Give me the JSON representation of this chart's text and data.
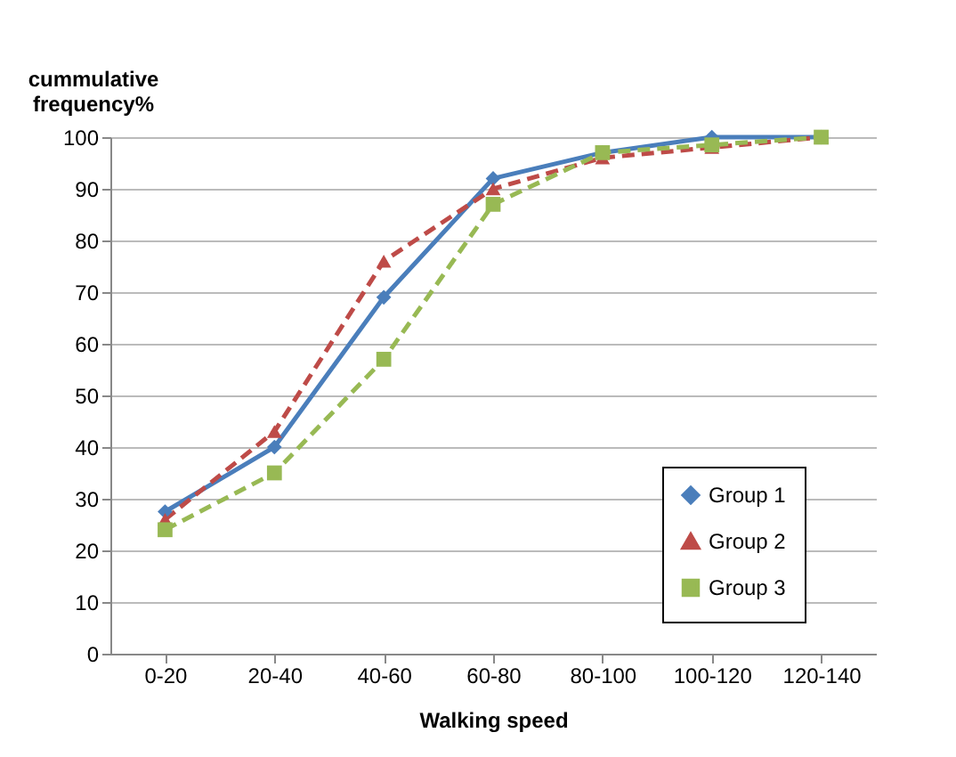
{
  "chart_data": {
    "type": "line",
    "xlabel": "Walking speed",
    "ylabel": "cummulative frequency%",
    "categories": [
      "0-20",
      "20-40",
      "40-60",
      "60-80",
      "80-100",
      "100-120",
      "120-140"
    ],
    "series": [
      {
        "name": "Group 1",
        "color": "#4a7ebb",
        "marker": "diamond",
        "line_style": "solid",
        "values": [
          27.5,
          40,
          69,
          92,
          97,
          100,
          100
        ]
      },
      {
        "name": "Group 2",
        "color": "#be4b48",
        "marker": "triangle",
        "line_style": "dashed",
        "values": [
          26,
          43,
          76,
          90,
          96,
          98,
          100
        ]
      },
      {
        "name": "Group 3",
        "color": "#98b954",
        "marker": "square",
        "line_style": "dashed",
        "values": [
          24,
          35,
          57,
          87,
          97,
          98.5,
          100
        ]
      }
    ],
    "ylim": [
      0,
      100
    ],
    "yticks": [
      0,
      10,
      20,
      30,
      40,
      50,
      60,
      70,
      80,
      90,
      100
    ],
    "grid": "y",
    "legend": "bottom right"
  }
}
